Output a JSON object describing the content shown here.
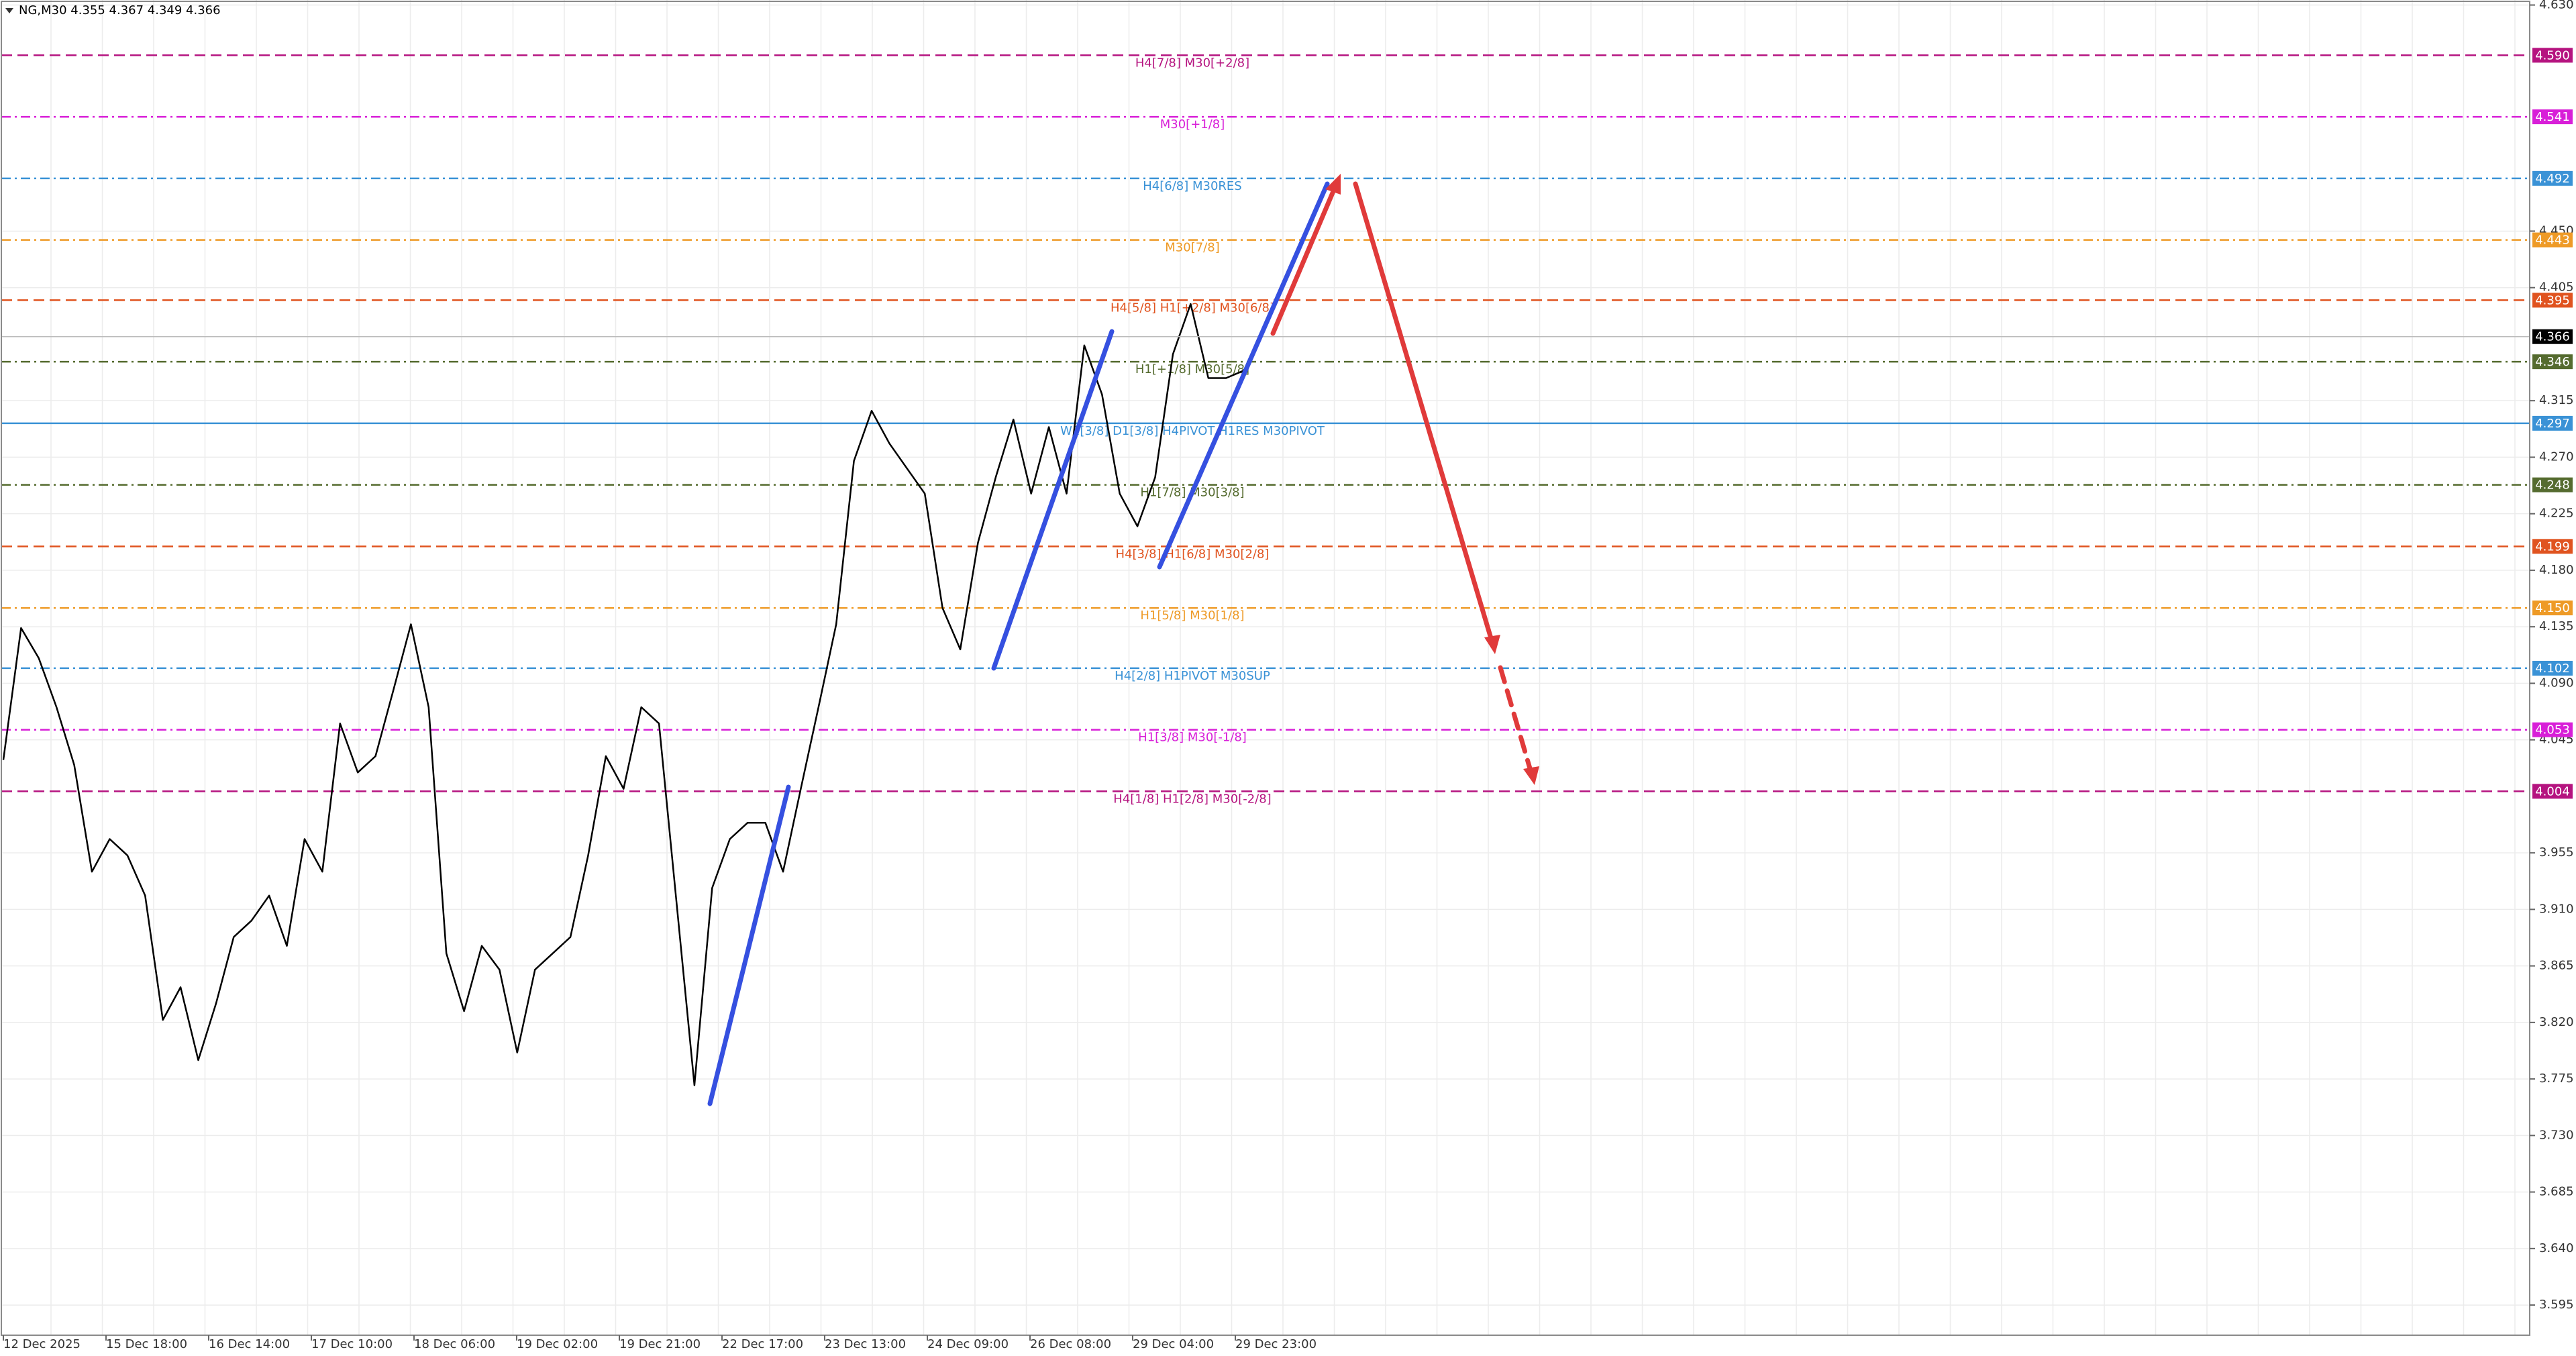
{
  "chart_data": {
    "type": "line",
    "title": "NG,M30  4.355 4.367 4.349 4.366",
    "x_labels": [
      "12 Dec 2025",
      "15 Dec 18:00",
      "16 Dec 14:00",
      "17 Dec 10:00",
      "18 Dec 06:00",
      "19 Dec 02:00",
      "19 Dec 21:00",
      "22 Dec 17:00",
      "23 Dec 13:00",
      "24 Dec 09:00",
      "26 Dec 08:00",
      "29 Dec 04:00",
      "29 Dec 23:00"
    ],
    "color": "#000000",
    "values": [
      4.029,
      4.134,
      4.11,
      4.071,
      4.025,
      3.94,
      3.966,
      3.953,
      3.921,
      3.822,
      3.848,
      3.79,
      3.835,
      3.888,
      3.901,
      3.921,
      3.881,
      3.966,
      3.94,
      4.058,
      4.019,
      4.032,
      4.084,
      4.137,
      4.071,
      3.875,
      3.829,
      3.881,
      3.862,
      3.796,
      3.862,
      3.875,
      3.888,
      3.953,
      4.032,
      4.006,
      4.071,
      4.058,
      3.914,
      3.77,
      3.927,
      3.966,
      3.979,
      3.979,
      3.94,
      4.006,
      4.071,
      4.137,
      4.267,
      4.307,
      4.281,
      4.261,
      4.241,
      4.15,
      4.117,
      4.202,
      4.254,
      4.3,
      4.241,
      4.294,
      4.241,
      4.359,
      4.32,
      4.241,
      4.215,
      4.254,
      4.352,
      4.392,
      4.333,
      4.333,
      4.339,
      4.366
    ],
    "ylim": [
      3.571,
      4.634
    ],
    "yticks": [
      {
        "value": 4.63,
        "label": "4.630"
      },
      {
        "value": 4.45,
        "label": "4.450"
      },
      4.405,
      4.315,
      {
        "value": 4.27,
        "label": "4.270"
      },
      4.225,
      {
        "value": 4.18,
        "label": "4.180"
      },
      4.135,
      {
        "value": 4.09,
        "label": "4.090"
      },
      4.045,
      3.955,
      {
        "value": 3.91,
        "label": "3.910"
      },
      3.865,
      {
        "value": 3.82,
        "label": "3.820"
      },
      3.775,
      {
        "value": 3.73,
        "label": "3.730"
      },
      3.685,
      {
        "value": 3.64,
        "label": "3.640"
      },
      3.595
    ],
    "grid": true,
    "levels": [
      {
        "value": 4.59,
        "price_label": "4.590",
        "label": "H4[7/8] M30[+2/8]",
        "color": "#b5137f",
        "style": "dashed"
      },
      {
        "value": 4.541,
        "label": "M30[+1/8]",
        "color": "#d81fd8",
        "style": "dashdot"
      },
      {
        "value": 4.492,
        "label": "H4[6/8] M30RES",
        "color": "#3a92d6",
        "style": "dashdot"
      },
      {
        "value": 4.443,
        "label": "M30[7/8]",
        "color": "#ee9a26",
        "style": "dashdot"
      },
      {
        "value": 4.395,
        "label": "H4[5/8] H1[+2/8] M30[6/8]",
        "color": "#e0531f",
        "style": "dashed"
      },
      {
        "value": 4.346,
        "label": "H1[+1/8] M30[5/8]",
        "color": "#556b2f",
        "style": "dashdot"
      },
      {
        "value": 4.297,
        "label": "W1[3/8] D1[3/8] H4PIVOT H1RES M30PIVOT",
        "color": "#3a92d6",
        "style": "solid"
      },
      {
        "value": 4.248,
        "label": "H1[7/8] M30[3/8]",
        "color": "#556b2f",
        "style": "dashdot"
      },
      {
        "value": 4.199,
        "label": "H4[3/8] H1[6/8] M30[2/8]",
        "color": "#e0531f",
        "style": "dashed"
      },
      {
        "value": 4.15,
        "price_label": "4.150",
        "label": "H1[5/8] M30[1/8]",
        "color": "#ee9a26",
        "style": "dashdot"
      },
      {
        "value": 4.102,
        "label": "H4[2/8] H1PIVOT M30SUP",
        "color": "#3a92d6",
        "style": "dashdot"
      },
      {
        "value": 4.053,
        "label": "H1[3/8] M30[-1/8]",
        "color": "#d81fd8",
        "style": "dashdot"
      },
      {
        "value": 4.004,
        "label": "H4[1/8] H1[2/8] M30[-2/8]",
        "color": "#b5137f",
        "style": "dashed"
      }
    ],
    "current_price": {
      "value": 4.366,
      "color": "#000000"
    }
  }
}
